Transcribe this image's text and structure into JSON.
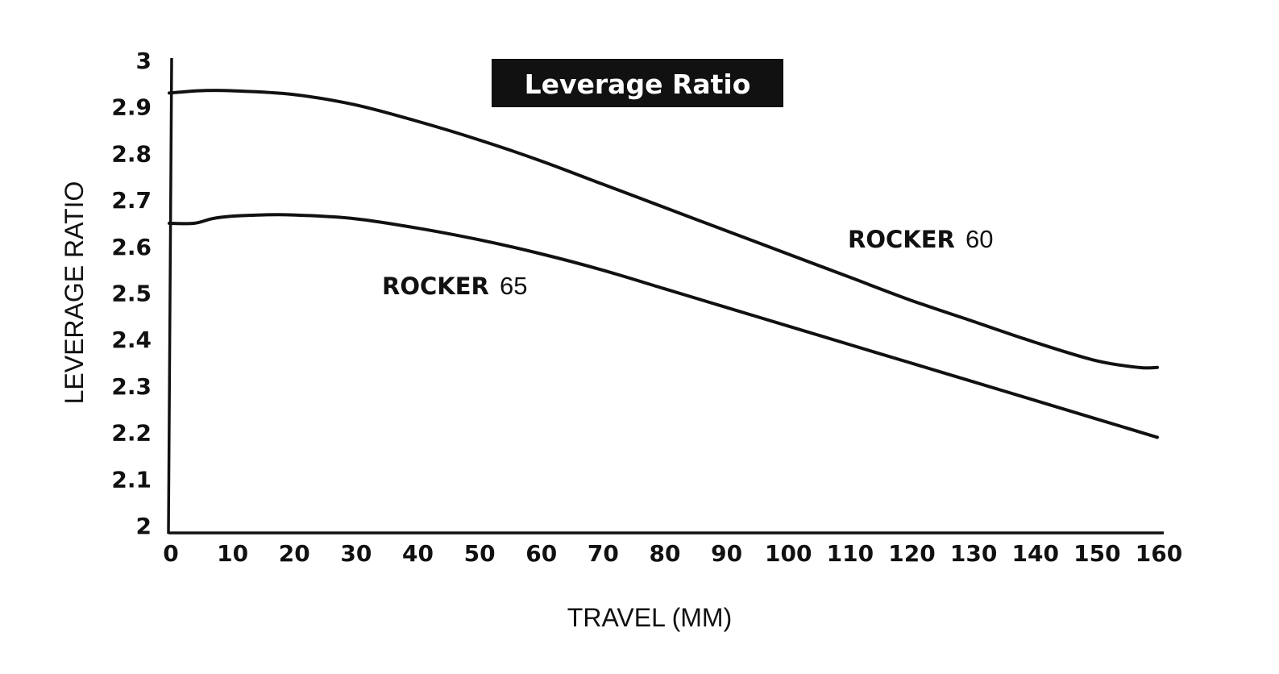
{
  "chart_data": {
    "type": "line",
    "title": "Leverage Ratio",
    "xlabel": "TRAVEL (MM)",
    "ylabel": "LEVERAGE RATIO",
    "xlim": [
      0,
      160
    ],
    "ylim": [
      2,
      3
    ],
    "x_ticks": [
      "0",
      "10",
      "20",
      "30",
      "40",
      "50",
      "60",
      "70",
      "80",
      "90",
      "100",
      "110",
      "120",
      "130",
      "140",
      "150",
      "160"
    ],
    "y_ticks": [
      "2",
      "2.1",
      "2.2",
      "2.3",
      "2.4",
      "2.5",
      "2.6",
      "2.7",
      "2.8",
      "2.9",
      "3"
    ],
    "grid": false,
    "legend": "none",
    "series": [
      {
        "name": "ROCKER 60",
        "label_bold": "ROCKER",
        "label_num": "60",
        "color": "#111111",
        "x": [
          0,
          5,
          10,
          20,
          30,
          40,
          50,
          60,
          70,
          80,
          90,
          100,
          110,
          120,
          130,
          140,
          150,
          157,
          160
        ],
        "y": [
          2.93,
          2.935,
          2.935,
          2.927,
          2.905,
          2.87,
          2.83,
          2.785,
          2.735,
          2.685,
          2.635,
          2.585,
          2.535,
          2.485,
          2.44,
          2.395,
          2.355,
          2.34,
          2.34
        ]
      },
      {
        "name": "ROCKER 65",
        "label_bold": "ROCKER",
        "label_num": "65",
        "color": "#111111",
        "x": [
          0,
          4,
          7,
          10,
          15,
          20,
          30,
          40,
          50,
          60,
          70,
          80,
          90,
          100,
          110,
          120,
          130,
          140,
          150,
          160
        ],
        "y": [
          2.65,
          2.65,
          2.66,
          2.665,
          2.668,
          2.668,
          2.66,
          2.64,
          2.615,
          2.585,
          2.55,
          2.51,
          2.47,
          2.43,
          2.39,
          2.35,
          2.31,
          2.27,
          2.23,
          2.19
        ]
      }
    ]
  }
}
